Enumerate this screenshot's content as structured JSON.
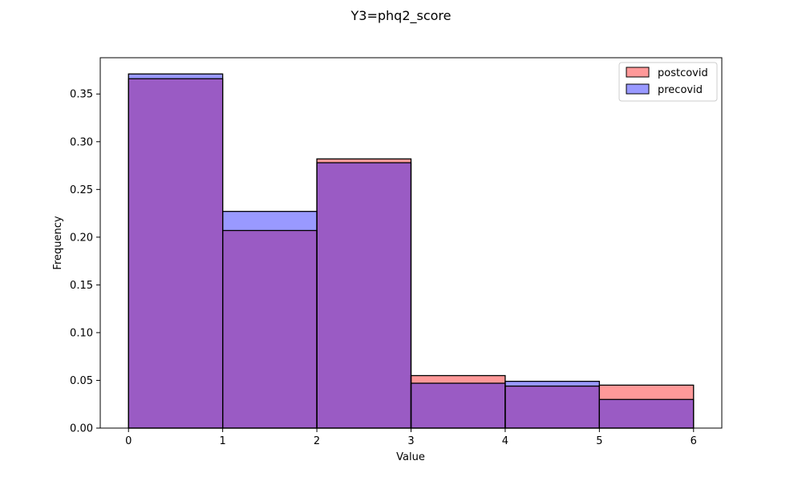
{
  "chart_data": {
    "type": "bar",
    "title": "Y3=phq2_score",
    "xlabel": "Value",
    "ylabel": "Frequency",
    "bin_edges": [
      0,
      1,
      2,
      3,
      4,
      5,
      6
    ],
    "x_ticks": [
      0,
      1,
      2,
      3,
      4,
      5,
      6
    ],
    "y_ticks": [
      "0.00",
      "0.05",
      "0.10",
      "0.15",
      "0.20",
      "0.25",
      "0.30",
      "0.35"
    ],
    "xlim": [
      -0.3,
      6.3
    ],
    "ylim": [
      0,
      0.388
    ],
    "grid": false,
    "legend_position": "top-right",
    "series": [
      {
        "name": "postcovid",
        "color": "#ff9999",
        "values": [
          0.366,
          0.207,
          0.282,
          0.055,
          0.044,
          0.045
        ]
      },
      {
        "name": "precovid",
        "color": "#9999ff",
        "values": [
          0.371,
          0.227,
          0.278,
          0.047,
          0.049,
          0.03
        ]
      }
    ],
    "overlap_color": "#9a5bc4"
  }
}
